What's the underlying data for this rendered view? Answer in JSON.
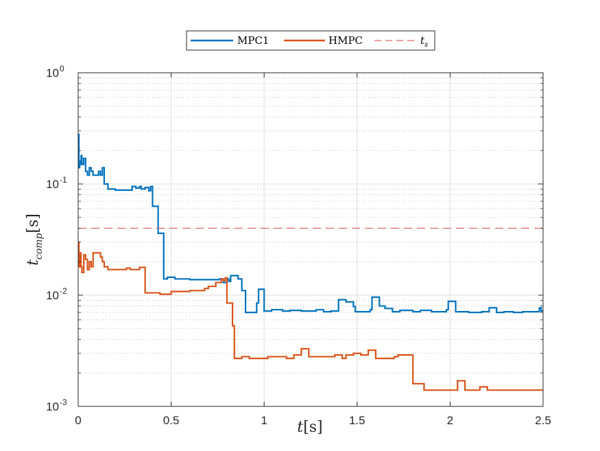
{
  "chart_data": {
    "type": "line",
    "step": true,
    "xlabel_main": "t",
    "xlabel_rest": "[s]",
    "ylabel_main": "t",
    "ylabel_sub": "comp",
    "ylabel_rest": "[s]",
    "xlim": [
      0,
      2.5
    ],
    "ylim": [
      0.001,
      1
    ],
    "yscale": "log",
    "grid": true,
    "minor_grid": true,
    "legend_position": "top-center",
    "x_ticks": [
      {
        "value": 0,
        "label": "0"
      },
      {
        "value": 0.5,
        "label": "0.5"
      },
      {
        "value": 1,
        "label": "1"
      },
      {
        "value": 1.5,
        "label": "1.5"
      },
      {
        "value": 2,
        "label": "2"
      },
      {
        "value": 2.5,
        "label": "2.5"
      }
    ],
    "y_ticks": [
      {
        "value": 1,
        "base": "10",
        "exp": "0"
      },
      {
        "value": 0.1,
        "base": "10",
        "exp": "-1"
      },
      {
        "value": 0.01,
        "base": "10",
        "exp": "-2"
      },
      {
        "value": 0.001,
        "base": "10",
        "exp": "-3"
      }
    ],
    "series": [
      {
        "name": "MPC1",
        "color": "#0072BD",
        "style": "solid",
        "points": [
          [
            0.0,
            0.28
          ],
          [
            0.004,
            0.14
          ],
          [
            0.008,
            0.16
          ],
          [
            0.012,
            0.15
          ],
          [
            0.016,
            0.18
          ],
          [
            0.02,
            0.15
          ],
          [
            0.03,
            0.17
          ],
          [
            0.04,
            0.13
          ],
          [
            0.05,
            0.12
          ],
          [
            0.06,
            0.14
          ],
          [
            0.07,
            0.13
          ],
          [
            0.08,
            0.12
          ],
          [
            0.1,
            0.12
          ],
          [
            0.11,
            0.13
          ],
          [
            0.12,
            0.12
          ],
          [
            0.13,
            0.14
          ],
          [
            0.14,
            0.1
          ],
          [
            0.16,
            0.09
          ],
          [
            0.2,
            0.088
          ],
          [
            0.28,
            0.088
          ],
          [
            0.29,
            0.095
          ],
          [
            0.31,
            0.092
          ],
          [
            0.33,
            0.095
          ],
          [
            0.34,
            0.09
          ],
          [
            0.36,
            0.093
          ],
          [
            0.38,
            0.087
          ],
          [
            0.39,
            0.095
          ],
          [
            0.4,
            0.063
          ],
          [
            0.43,
            0.036
          ],
          [
            0.46,
            0.014
          ],
          [
            0.48,
            0.0145
          ],
          [
            0.52,
            0.014
          ],
          [
            0.6,
            0.0138
          ],
          [
            0.74,
            0.0138
          ],
          [
            0.76,
            0.014
          ],
          [
            0.78,
            0.013
          ],
          [
            0.8,
            0.014
          ],
          [
            0.81,
            0.0133
          ],
          [
            0.82,
            0.015
          ],
          [
            0.86,
            0.014
          ],
          [
            0.88,
            0.011
          ],
          [
            0.9,
            0.007
          ],
          [
            0.96,
            0.0085
          ],
          [
            0.97,
            0.0113
          ],
          [
            1.0,
            0.0072
          ],
          [
            1.04,
            0.0074
          ],
          [
            1.1,
            0.0072
          ],
          [
            1.14,
            0.0073
          ],
          [
            1.2,
            0.0072
          ],
          [
            1.28,
            0.0074
          ],
          [
            1.32,
            0.0071
          ],
          [
            1.36,
            0.0072
          ],
          [
            1.4,
            0.0091
          ],
          [
            1.44,
            0.0087
          ],
          [
            1.48,
            0.0079
          ],
          [
            1.49,
            0.0071
          ],
          [
            1.54,
            0.0071
          ],
          [
            1.57,
            0.0074
          ],
          [
            1.58,
            0.0096
          ],
          [
            1.62,
            0.008
          ],
          [
            1.65,
            0.0076
          ],
          [
            1.69,
            0.0071
          ],
          [
            1.73,
            0.0073
          ],
          [
            1.8,
            0.0071
          ],
          [
            1.84,
            0.0073
          ],
          [
            1.9,
            0.0071
          ],
          [
            1.98,
            0.0074
          ],
          [
            1.99,
            0.0088
          ],
          [
            2.03,
            0.0071
          ],
          [
            2.1,
            0.007
          ],
          [
            2.17,
            0.0071
          ],
          [
            2.21,
            0.0077
          ],
          [
            2.25,
            0.007
          ],
          [
            2.29,
            0.0071
          ],
          [
            2.34,
            0.007
          ],
          [
            2.39,
            0.0071
          ],
          [
            2.44,
            0.0071
          ],
          [
            2.48,
            0.0077
          ],
          [
            2.49,
            0.0072
          ],
          [
            2.5,
            0.0072
          ]
        ]
      },
      {
        "name": "HMPC",
        "color": "#D95319",
        "style": "solid",
        "points": [
          [
            0.0,
            0.03
          ],
          [
            0.004,
            0.018
          ],
          [
            0.01,
            0.024
          ],
          [
            0.015,
            0.018
          ],
          [
            0.02,
            0.016
          ],
          [
            0.03,
            0.023
          ],
          [
            0.04,
            0.021
          ],
          [
            0.05,
            0.017
          ],
          [
            0.06,
            0.02
          ],
          [
            0.07,
            0.018
          ],
          [
            0.08,
            0.024
          ],
          [
            0.1,
            0.024
          ],
          [
            0.12,
            0.022
          ],
          [
            0.13,
            0.02
          ],
          [
            0.14,
            0.018
          ],
          [
            0.16,
            0.017
          ],
          [
            0.24,
            0.017
          ],
          [
            0.26,
            0.0175
          ],
          [
            0.28,
            0.017
          ],
          [
            0.33,
            0.0178
          ],
          [
            0.36,
            0.0105
          ],
          [
            0.44,
            0.0102
          ],
          [
            0.5,
            0.0108
          ],
          [
            0.6,
            0.011
          ],
          [
            0.68,
            0.0115
          ],
          [
            0.7,
            0.012
          ],
          [
            0.74,
            0.013
          ],
          [
            0.77,
            0.014
          ],
          [
            0.78,
            0.0135
          ],
          [
            0.79,
            0.0143
          ],
          [
            0.8,
            0.0085
          ],
          [
            0.83,
            0.0053
          ],
          [
            0.84,
            0.0027
          ],
          [
            0.88,
            0.0028
          ],
          [
            0.92,
            0.0027
          ],
          [
            1.02,
            0.0028
          ],
          [
            1.12,
            0.0027
          ],
          [
            1.16,
            0.0029
          ],
          [
            1.2,
            0.0033
          ],
          [
            1.24,
            0.0028
          ],
          [
            1.32,
            0.0028
          ],
          [
            1.38,
            0.0029
          ],
          [
            1.42,
            0.0027
          ],
          [
            1.44,
            0.0029
          ],
          [
            1.48,
            0.003
          ],
          [
            1.52,
            0.0029
          ],
          [
            1.56,
            0.0032
          ],
          [
            1.6,
            0.0027
          ],
          [
            1.7,
            0.0028
          ],
          [
            1.72,
            0.0029
          ],
          [
            1.8,
            0.0016
          ],
          [
            1.86,
            0.0014
          ],
          [
            1.98,
            0.0014
          ],
          [
            2.04,
            0.0017
          ],
          [
            2.08,
            0.0014
          ],
          [
            2.14,
            0.0014
          ],
          [
            2.16,
            0.0015
          ],
          [
            2.2,
            0.0014
          ],
          [
            2.5,
            0.0014
          ]
        ]
      },
      {
        "name": "t_s",
        "legend_main": "t",
        "legend_sub": "s",
        "color": "#E06666",
        "style": "dashed",
        "points": [
          [
            0,
            0.04
          ],
          [
            2.5,
            0.04
          ]
        ]
      }
    ]
  }
}
